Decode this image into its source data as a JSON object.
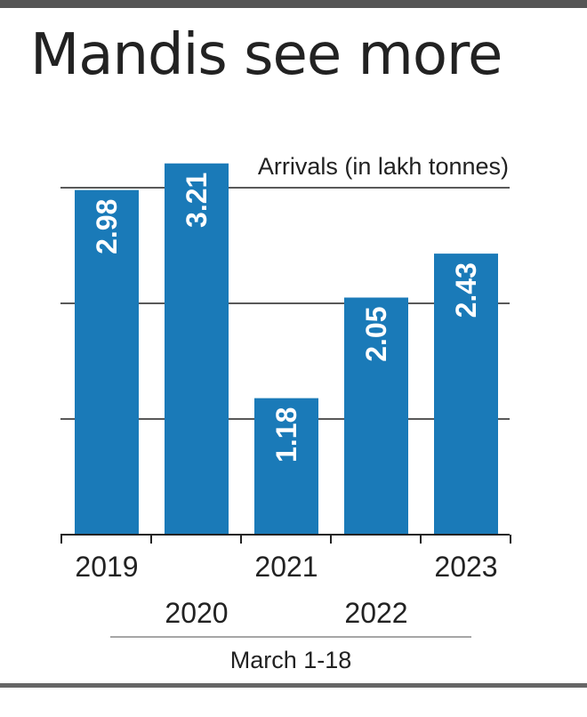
{
  "header": {
    "title": "Mandis see more"
  },
  "colors": {
    "bar": "#1a7ab8",
    "bar_label": "#ffffff",
    "grid": "#222222",
    "text": "#222222"
  },
  "chart_data": {
    "type": "bar",
    "title": "Mandis see more",
    "ylabel": "Arrivals (in lakh tonnes)",
    "xlabel": "March 1-18",
    "categories": [
      "2019",
      "2020",
      "2021",
      "2022",
      "2023"
    ],
    "values": [
      2.98,
      3.21,
      1.18,
      2.05,
      2.43
    ],
    "value_labels": [
      "2.98",
      "3.21",
      "1.18",
      "2.05",
      "2.43"
    ],
    "ylim": [
      0,
      3.6
    ],
    "grid": true,
    "yticks": [
      1,
      2,
      3
    ]
  }
}
